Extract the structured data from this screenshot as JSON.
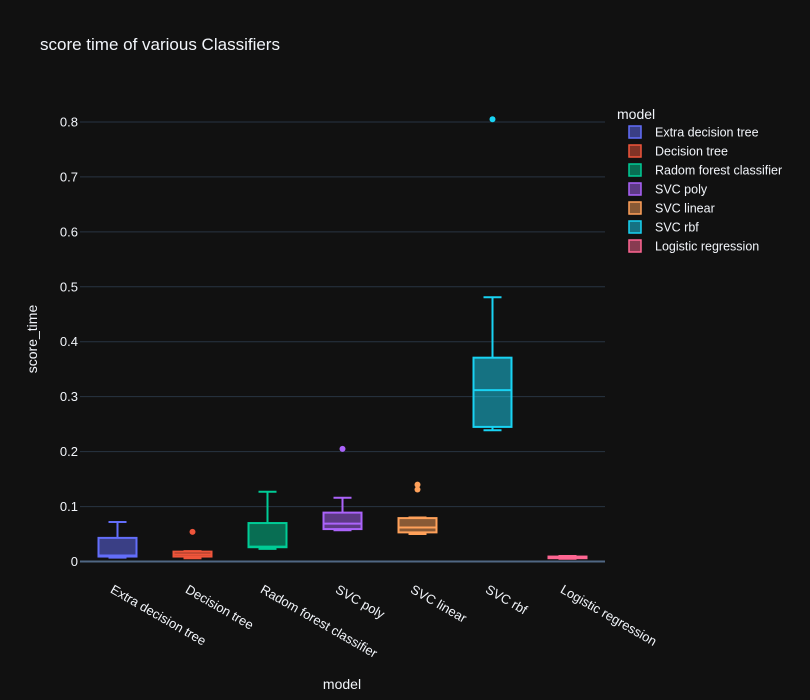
{
  "chart_data": {
    "type": "box",
    "title": "score time of various Classifiers",
    "xlabel": "model",
    "ylabel": "score_time",
    "ylim": [
      -0.01,
      0.84
    ],
    "yticks": [
      0,
      0.1,
      0.2,
      0.3,
      0.4,
      0.5,
      0.6,
      0.7,
      0.8
    ],
    "ytick_labels": [
      "0",
      "0.1",
      "0.2",
      "0.3",
      "0.4",
      "0.5",
      "0.6",
      "0.7",
      "0.8"
    ],
    "grid": true,
    "legend": {
      "title": "model",
      "placement": "top-right"
    },
    "categories": [
      "Extra decision tree",
      "Decision tree",
      "Radom forest classifier",
      "SVC poly",
      "SVC linear",
      "SVC rbf",
      "Logistic regression"
    ],
    "series": [
      {
        "name": "Extra decision tree",
        "color": "#636efa",
        "min": 0.007,
        "q1": 0.009,
        "median": 0.011,
        "q3": 0.043,
        "max": 0.072,
        "outliers": []
      },
      {
        "name": "Decision tree",
        "color": "#EF553B",
        "min": 0.006,
        "q1": 0.009,
        "median": 0.013,
        "q3": 0.018,
        "max": 0.019,
        "outliers": [
          0.054
        ]
      },
      {
        "name": "Radom forest classifier",
        "color": "#00cc96",
        "min": 0.023,
        "q1": 0.026,
        "median": 0.027,
        "q3": 0.07,
        "max": 0.127,
        "outliers": []
      },
      {
        "name": "SVC poly",
        "color": "#ab63fa",
        "min": 0.057,
        "q1": 0.059,
        "median": 0.069,
        "q3": 0.089,
        "max": 0.116,
        "outliers": [
          0.205
        ]
      },
      {
        "name": "SVC linear",
        "color": "#FFA15A",
        "min": 0.05,
        "q1": 0.053,
        "median": 0.062,
        "q3": 0.079,
        "max": 0.08,
        "outliers": [
          0.131,
          0.14
        ]
      },
      {
        "name": "SVC rbf",
        "color": "#19d3f3",
        "min": 0.239,
        "q1": 0.245,
        "median": 0.312,
        "q3": 0.371,
        "max": 0.481,
        "outliers": [
          0.805
        ]
      },
      {
        "name": "Logistic regression",
        "color": "#FF6692",
        "min": 0.005,
        "q1": 0.006,
        "median": 0.007,
        "q3": 0.009,
        "max": 0.01,
        "outliers": []
      }
    ]
  }
}
